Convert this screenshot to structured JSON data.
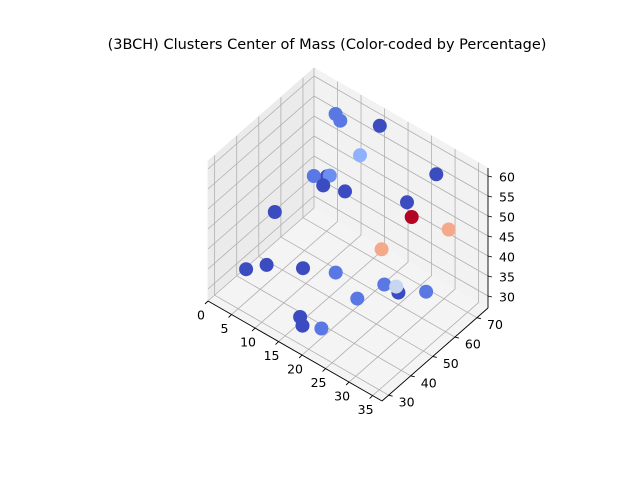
{
  "chart_data": {
    "type": "scatter3d",
    "title": "(3BCH) Clusters Center of Mass (Color-coded by Percentage)",
    "xlabel": "",
    "ylabel": "",
    "zlabel": "",
    "xlim": [
      0,
      37
    ],
    "ylim": [
      27,
      75
    ],
    "zlim": [
      27,
      62
    ],
    "xticks": [
      "0",
      "5",
      "10",
      "15",
      "20",
      "25",
      "30",
      "35"
    ],
    "yticks": [
      "30",
      "40",
      "50",
      "60",
      "70"
    ],
    "zticks": [
      "30",
      "35",
      "40",
      "45",
      "50",
      "55",
      "60"
    ],
    "grid": true,
    "colormap": "coolwarm",
    "points": [
      {
        "x": 2,
        "y": 40,
        "z": 30,
        "color": "#3b4cc0"
      },
      {
        "x": 4,
        "y": 45,
        "z": 30,
        "color": "#3b4cc0"
      },
      {
        "x": 2,
        "y": 53,
        "z": 38,
        "color": "#3b4cc0"
      },
      {
        "x": 8,
        "y": 53,
        "z": 28,
        "color": "#3b4cc0"
      },
      {
        "x": 7,
        "y": 60,
        "z": 47,
        "color": "#5a78e4"
      },
      {
        "x": 9,
        "y": 63,
        "z": 47,
        "color": "#6b8ef0"
      },
      {
        "x": 9,
        "y": 60,
        "z": 46,
        "color": "#3b4cc0"
      },
      {
        "x": 7,
        "y": 66,
        "z": 44,
        "color": "#3b4cc0"
      },
      {
        "x": 6,
        "y": 72,
        "z": 56,
        "color": "#5a78e4"
      },
      {
        "x": 7,
        "y": 72,
        "z": 55,
        "color": "#5a78e4"
      },
      {
        "x": 8,
        "y": 72,
        "z": 38,
        "color": "#3b4cc0"
      },
      {
        "x": 14,
        "y": 66,
        "z": 54,
        "color": "#8fb1fe"
      },
      {
        "x": 14,
        "y": 75,
        "z": 57,
        "color": "#3b4cc0"
      },
      {
        "x": 14,
        "y": 55,
        "z": 30,
        "color": "#5a78e4"
      },
      {
        "x": 13,
        "y": 41,
        "z": 25,
        "color": "#3b4cc0"
      },
      {
        "x": 14,
        "y": 40,
        "z": 24,
        "color": "#3b4cc0"
      },
      {
        "x": 18,
        "y": 40,
        "z": 26,
        "color": "#5a78e4"
      },
      {
        "x": 20,
        "y": 52,
        "z": 29,
        "color": "#5a78e4"
      },
      {
        "x": 22,
        "y": 60,
        "z": 30,
        "color": "#5a78e4"
      },
      {
        "x": 20,
        "y": 63,
        "z": 36,
        "color": "#f4a98a"
      },
      {
        "x": 25,
        "y": 60,
        "z": 30,
        "color": "#3b4cc0"
      },
      {
        "x": 24,
        "y": 66,
        "z": 49,
        "color": "#3b4cc0"
      },
      {
        "x": 26,
        "y": 75,
        "z": 53,
        "color": "#3b4cc0"
      },
      {
        "x": 25,
        "y": 66,
        "z": 46,
        "color": "#b40426"
      },
      {
        "x": 25,
        "y": 59,
        "z": 32,
        "color": "#c6d6f1"
      },
      {
        "x": 29,
        "y": 64,
        "z": 31,
        "color": "#5a78e4"
      },
      {
        "x": 31,
        "y": 70,
        "z": 45,
        "color": "#f4a98a"
      }
    ]
  }
}
